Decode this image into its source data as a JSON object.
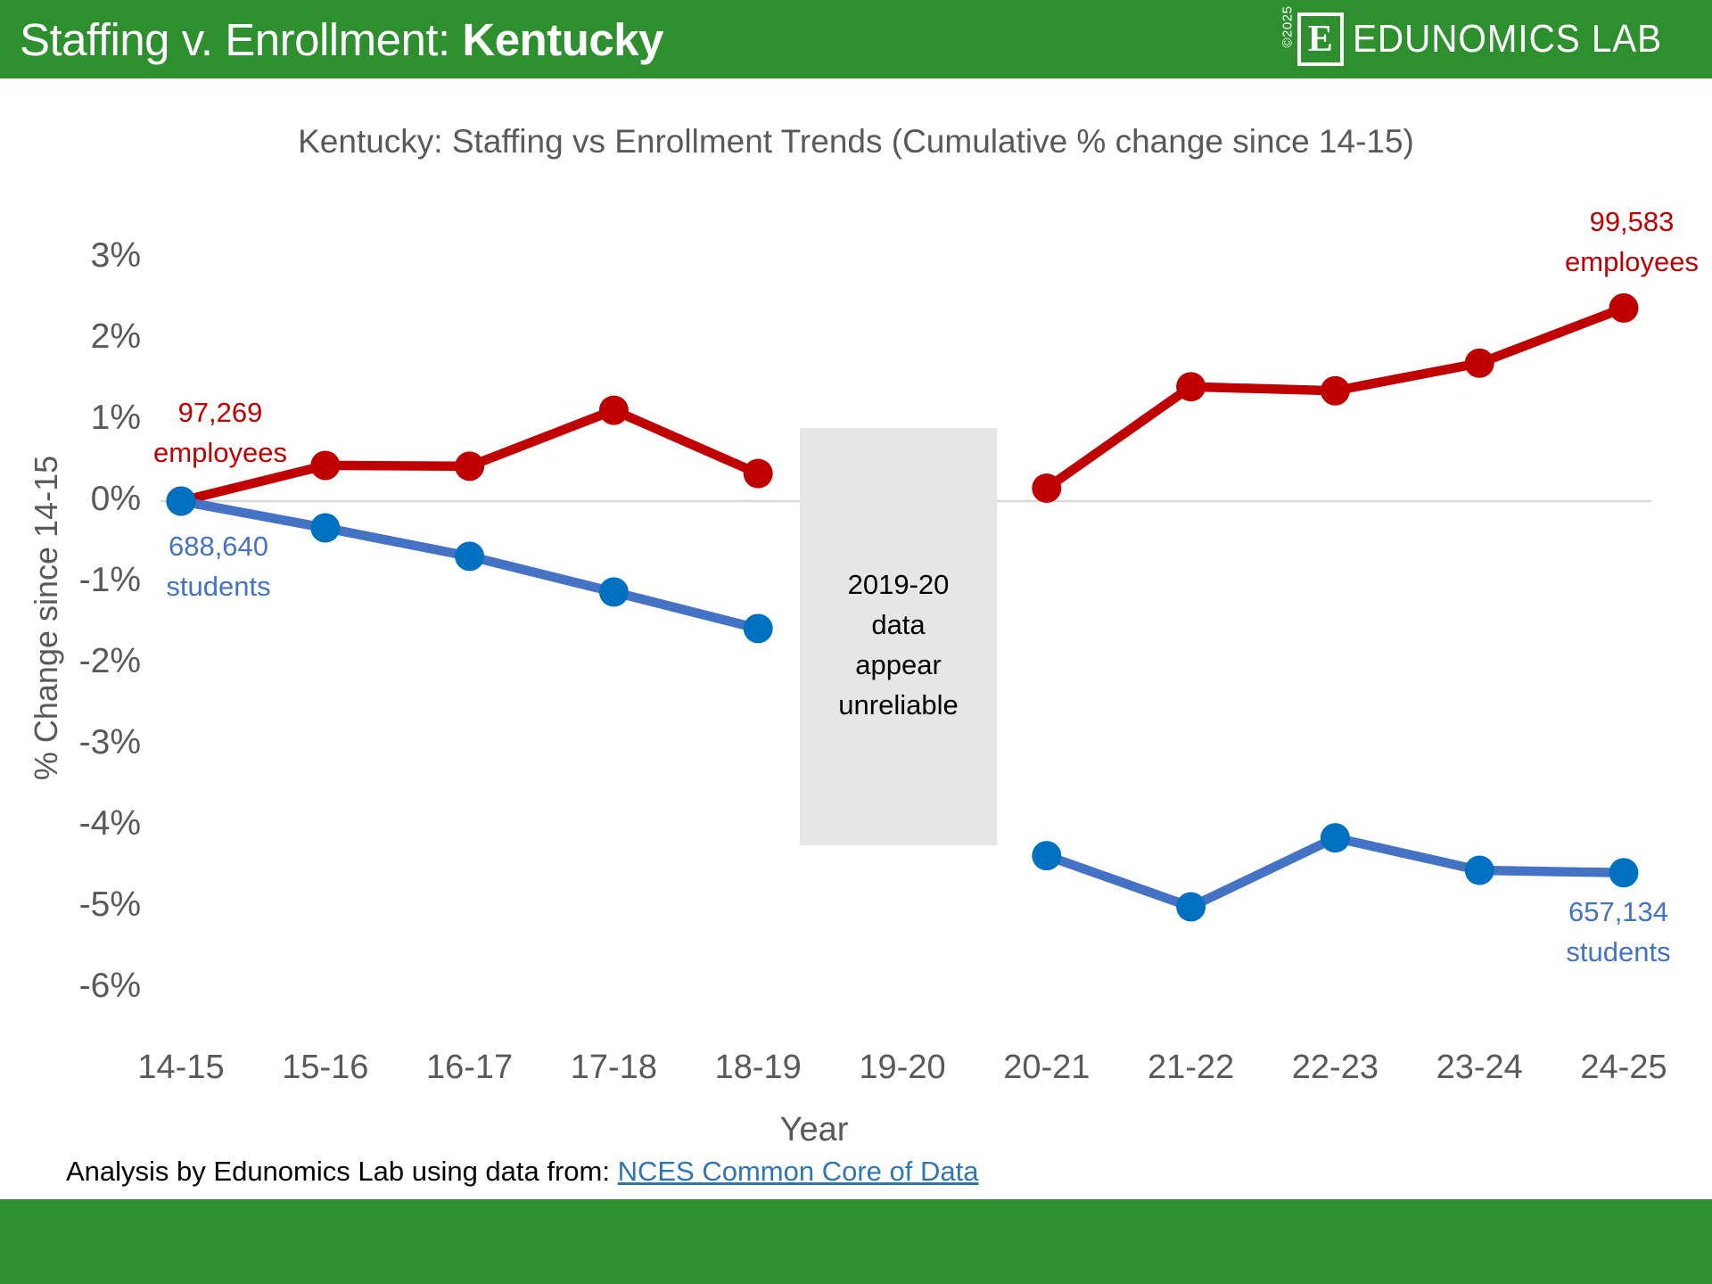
{
  "header": {
    "title_prefix": "Staffing v. Enrollment: ",
    "title_state": "Kentucky",
    "copyright": "©2025",
    "logo_letter": "E",
    "logo_text": "EDUNOMICS LAB"
  },
  "chart_data": {
    "type": "line",
    "title": "Kentucky: Staffing vs Enrollment Trends (Cumulative % change since 14-15)",
    "xlabel": "Year",
    "ylabel": "% Change since 14-15",
    "categories": [
      "14-15",
      "15-16",
      "16-17",
      "17-18",
      "18-19",
      "19-20",
      "20-21",
      "21-22",
      "22-23",
      "23-24",
      "24-25"
    ],
    "y_ticks": [
      "3%",
      "2%",
      "1%",
      "0%",
      "-1%",
      "-2%",
      "-3%",
      "-4%",
      "-5%",
      "-6%"
    ],
    "y_tick_values": [
      3,
      2,
      1,
      0,
      -1,
      -2,
      -3,
      -4,
      -5,
      -6
    ],
    "ylim": [
      -6,
      3
    ],
    "grid": "zero-line-only",
    "legend_position": "none-direct-labels",
    "series": [
      {
        "name": "employees",
        "color": "#C00000",
        "marker_color": "#C00000",
        "values": [
          0,
          0.44,
          0.43,
          1.12,
          0.34,
          null,
          0.16,
          1.41,
          1.36,
          1.7,
          2.38
        ],
        "start_label": [
          "97,269",
          "employees"
        ],
        "end_label": [
          "99,583",
          "employees"
        ]
      },
      {
        "name": "students",
        "color": "#4472C4",
        "marker_color": "#0070C0",
        "values": [
          0,
          -0.33,
          -0.68,
          -1.12,
          -1.57,
          null,
          -4.37,
          -5.0,
          -4.15,
          -4.55,
          -4.58
        ],
        "start_label": [
          "688,640",
          "students"
        ],
        "end_label": [
          "657,134",
          "students"
        ]
      }
    ],
    "annotation": {
      "lines": [
        "2019-20",
        "data",
        "appear",
        "unreliable"
      ],
      "covers_category": "19-20"
    }
  },
  "footer": {
    "text": "Analysis by Edunomics Lab using data from: ",
    "link": "NCES Common Core of Data"
  },
  "colors": {
    "brand_green": "#2E8F2E",
    "employees_red": "#C00000",
    "students_line_blue": "#4472C4",
    "students_marker_blue": "#0070C0",
    "axis_gray": "#595959",
    "zero_line": "#D9D9D9",
    "annotation_bg": "#E7E6E6",
    "link_blue": "#2E75B6"
  }
}
